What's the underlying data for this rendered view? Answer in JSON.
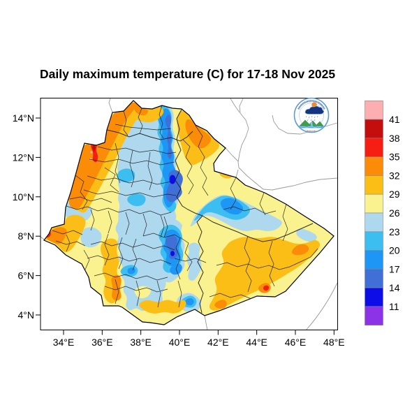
{
  "title": "Daily maximum temperature (C) for 17-18 Nov 2025",
  "map": {
    "region": "Ethiopia",
    "x_axis": {
      "ticks": [
        "34°E",
        "36°E",
        "38°E",
        "40°E",
        "42°E",
        "44°E",
        "46°E",
        "48°E"
      ]
    },
    "y_axis": {
      "ticks": [
        "14°N",
        "12°N",
        "10°N",
        "8°N",
        "6°N",
        "4°N"
      ]
    }
  },
  "legend": {
    "unit": "C",
    "values": [
      "41",
      "38",
      "35",
      "32",
      "29",
      "26",
      "23",
      "20",
      "17",
      "14",
      "11"
    ],
    "colors": [
      "#FCAEB0",
      "#C40D0D",
      "#F61E12",
      "#FB8C07",
      "#FBBE17",
      "#FAF28E",
      "#AED8EE",
      "#3CBEF0",
      "#1E96F5",
      "#4070D6",
      "#0D0DE8",
      "#8C33E8"
    ]
  },
  "logo": {
    "caption": "Ethiopian Meteorology Institute"
  },
  "colors": {
    "country_outline": "#000000",
    "zone_lines": "#1a1a1a",
    "neighbor_lines": "#9a9a9a",
    "background": "#ffffff"
  }
}
